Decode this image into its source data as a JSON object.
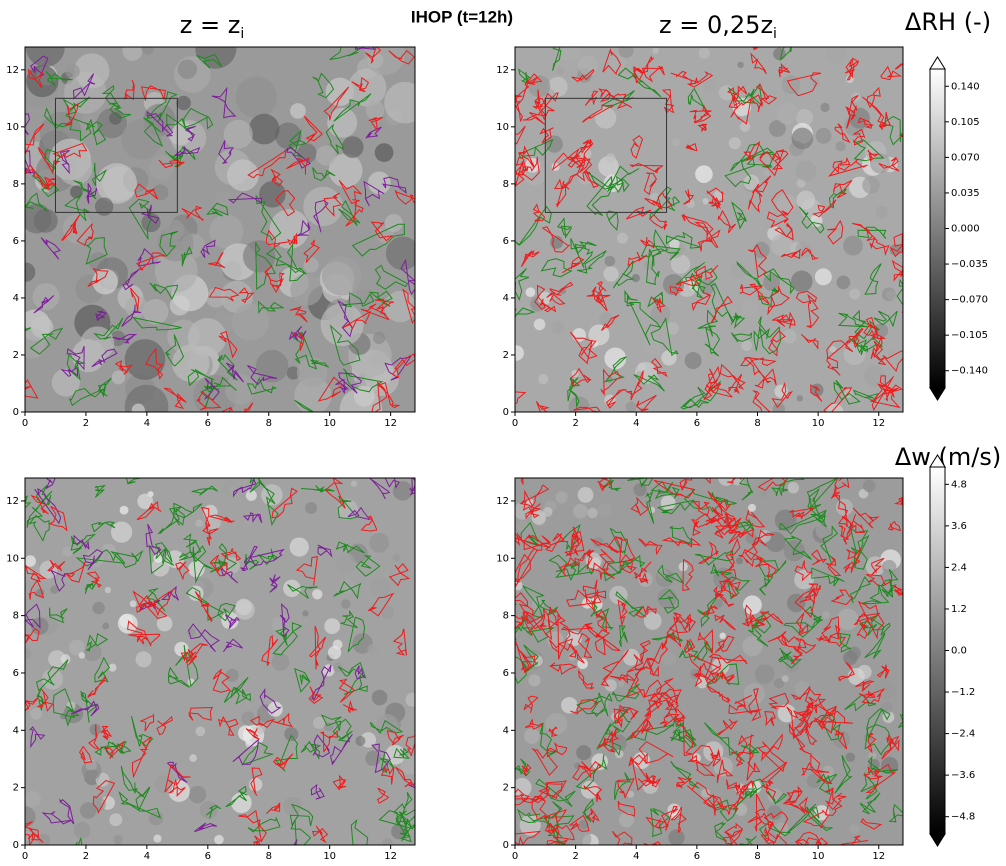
{
  "title": "IHOP (t=12h)",
  "column_titles": [
    {
      "text": "z = z",
      "subscript": "i"
    },
    {
      "text": "z = 0,25z",
      "subscript": "i"
    }
  ],
  "chart_data": [
    {
      "type": "heatmap",
      "xlim": [
        0,
        12.8
      ],
      "ylim": [
        0,
        12.8
      ],
      "xticks": [
        0,
        2,
        4,
        6,
        8,
        10,
        12
      ],
      "yticks": [
        0,
        2,
        4,
        6,
        8,
        10,
        12
      ],
      "box": {
        "x": [
          1,
          5
        ],
        "y": [
          7,
          11
        ]
      }
    },
    {
      "type": "heatmap",
      "xlim": [
        0,
        12.8
      ],
      "ylim": [
        0,
        12.8
      ],
      "xticks": [
        0,
        2,
        4,
        6,
        8,
        10,
        12
      ],
      "yticks": [
        0,
        2,
        4,
        6,
        8,
        10,
        12
      ],
      "box": {
        "x": [
          1,
          5
        ],
        "y": [
          7,
          11
        ]
      }
    },
    {
      "type": "heatmap",
      "xlim": [
        0,
        12.8
      ],
      "ylim": [
        0,
        12.8
      ],
      "xticks": [
        0,
        2,
        4,
        6,
        8,
        10,
        12
      ],
      "yticks": [
        0,
        2,
        4,
        6,
        8,
        10,
        12
      ]
    },
    {
      "type": "heatmap",
      "xlim": [
        0,
        12.8
      ],
      "ylim": [
        0,
        12.8
      ],
      "xticks": [
        0,
        2,
        4,
        6,
        8,
        10,
        12
      ],
      "yticks": [
        0,
        2,
        4,
        6,
        8,
        10,
        12
      ]
    }
  ],
  "colorbars": [
    {
      "title": "ΔRH (-)",
      "clim": [
        -0.157,
        0.157
      ],
      "ticks": [
        {
          "value": 0.14,
          "label": "0.140"
        },
        {
          "value": 0.105,
          "label": "0.105"
        },
        {
          "value": 0.07,
          "label": "0.070"
        },
        {
          "value": 0.035,
          "label": "0.035"
        },
        {
          "value": 0,
          "label": "0.000"
        },
        {
          "value": -0.035,
          "label": "−0.035"
        },
        {
          "value": -0.07,
          "label": "−0.070"
        },
        {
          "value": -0.105,
          "label": "−0.105"
        },
        {
          "value": -0.14,
          "label": "−0.140"
        }
      ]
    },
    {
      "title": "Δw (m/s)",
      "clim": [
        -5.3,
        5.3
      ],
      "ticks": [
        4.8,
        3.6,
        2.4,
        1.2,
        {
          "value": 0,
          "label": "0.0"
        },
        {
          "value": -1.2,
          "label": "−1.2"
        },
        {
          "value": -2.4,
          "label": "−2.4"
        },
        {
          "value": -3.6,
          "label": "−3.6"
        },
        {
          "value": -4.8,
          "label": "−4.8"
        }
      ]
    }
  ]
}
